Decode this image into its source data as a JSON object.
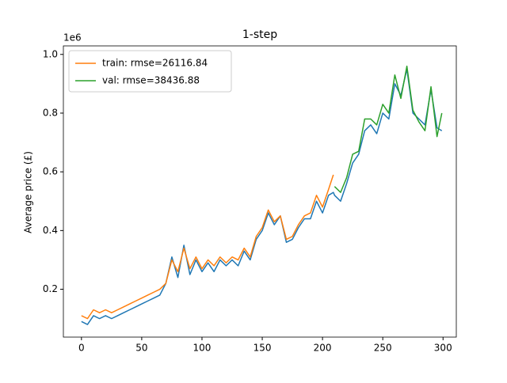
{
  "chart_data": {
    "type": "line",
    "title": "1-step",
    "ylabel": "Average price (£)",
    "y_offset_label": "1e6",
    "x": [
      0,
      5,
      10,
      15,
      20,
      25,
      30,
      35,
      40,
      45,
      50,
      55,
      60,
      65,
      70,
      75,
      80,
      85,
      90,
      95,
      100,
      105,
      110,
      115,
      120,
      125,
      130,
      135,
      140,
      145,
      150,
      155,
      160,
      165,
      170,
      175,
      180,
      185,
      190,
      195,
      200,
      205,
      209,
      210,
      215,
      220,
      225,
      230,
      235,
      240,
      245,
      250,
      255,
      260,
      265,
      270,
      275,
      280,
      285,
      290,
      295,
      299
    ],
    "series": [
      {
        "color": "#1f77b4",
        "values": [
          0.09,
          0.08,
          0.11,
          0.1,
          0.11,
          0.1,
          0.11,
          0.12,
          0.13,
          0.14,
          0.15,
          0.16,
          0.17,
          0.18,
          0.22,
          0.31,
          0.24,
          0.35,
          0.25,
          0.3,
          0.26,
          0.29,
          0.26,
          0.3,
          0.28,
          0.3,
          0.28,
          0.33,
          0.3,
          0.37,
          0.4,
          0.46,
          0.42,
          0.45,
          0.36,
          0.37,
          0.41,
          0.44,
          0.44,
          0.5,
          0.46,
          0.52,
          0.53,
          0.52,
          0.5,
          0.56,
          0.63,
          0.66,
          0.74,
          0.76,
          0.73,
          0.8,
          0.78,
          0.9,
          0.86,
          0.95,
          0.8,
          0.78,
          0.76,
          0.88,
          0.75,
          0.74
        ]
      },
      {
        "name": "train: rmse=26116.84",
        "color": "#ff7f0e",
        "values": [
          0.11,
          0.1,
          0.13,
          0.12,
          0.13,
          0.12,
          0.13,
          0.14,
          0.15,
          0.16,
          0.17,
          0.18,
          0.19,
          0.2,
          0.22,
          0.3,
          0.26,
          0.34,
          0.27,
          0.31,
          0.27,
          0.3,
          0.28,
          0.31,
          0.29,
          0.31,
          0.3,
          0.34,
          0.31,
          0.38,
          0.41,
          0.47,
          0.43,
          0.45,
          0.37,
          0.38,
          0.42,
          0.45,
          0.46,
          0.52,
          0.48,
          0.54,
          0.59,
          null,
          null,
          null,
          null,
          null,
          null,
          null,
          null,
          null,
          null,
          null,
          null,
          null,
          null,
          null,
          null,
          null,
          null,
          null
        ]
      },
      {
        "name": "val: rmse=38436.88",
        "color": "#2ca02c",
        "values": [
          null,
          null,
          null,
          null,
          null,
          null,
          null,
          null,
          null,
          null,
          null,
          null,
          null,
          null,
          null,
          null,
          null,
          null,
          null,
          null,
          null,
          null,
          null,
          null,
          null,
          null,
          null,
          null,
          null,
          null,
          null,
          null,
          null,
          null,
          null,
          null,
          null,
          null,
          null,
          null,
          null,
          null,
          null,
          0.55,
          0.53,
          0.58,
          0.66,
          0.67,
          0.78,
          0.78,
          0.76,
          0.83,
          0.8,
          0.93,
          0.85,
          0.96,
          0.81,
          0.77,
          0.74,
          0.89,
          0.72,
          0.8
        ]
      }
    ],
    "xlim": [
      -15,
      311
    ],
    "ylim": [
      0.037,
      1.029
    ],
    "xticks": [
      0,
      50,
      100,
      150,
      200,
      250,
      300
    ],
    "yticks": [
      0.2,
      0.4,
      0.6,
      0.8,
      {
        "value": 1.0,
        "label": "1.0"
      }
    ],
    "legend": "upper left"
  }
}
